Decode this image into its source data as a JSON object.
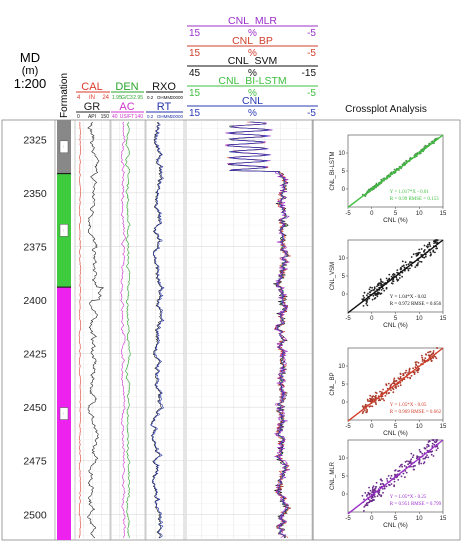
{
  "header": {
    "md_label": "MD",
    "md_unit": "(m)",
    "scale": "1:200",
    "formation_label": "Formation",
    "crossplot_title": "Crossplot Analysis"
  },
  "tracks": {
    "cal": {
      "name": "CAL",
      "min": "4",
      "unit": "IN",
      "max": "24",
      "color": "#d93a2a"
    },
    "gr": {
      "name": "GR",
      "min": "0",
      "unit": "API",
      "max": "150",
      "color": "#222222"
    },
    "den": {
      "name": "DEN",
      "min": "1.95",
      "unit": "G/C3",
      "max": "2.95",
      "color": "#2aa52a"
    },
    "ac": {
      "name": "AC",
      "min": "40",
      "unit": "US/FT",
      "max": "140",
      "color": "#cc33cc"
    },
    "rxo": {
      "name": "RXO",
      "min": "0.2",
      "unit": "OHMM",
      "max": "20000",
      "color": "#111111"
    },
    "rt": {
      "name": "RT",
      "min": "0.2",
      "unit": "OHMM",
      "max": "20000",
      "color": "#2233aa"
    }
  },
  "cnl_headers": [
    {
      "name": "CNL_MLR",
      "min": "15",
      "unit": "%",
      "max": "-5",
      "color": "#9b2fc9"
    },
    {
      "name": "CNL_BP",
      "min": "15",
      "unit": "%",
      "max": "-5",
      "color": "#d2402d"
    },
    {
      "name": "CNL_SVM",
      "min": "45",
      "unit": "%",
      "max": "-15",
      "color": "#111111"
    },
    {
      "name": "CNL_BI-LSTM",
      "min": "15",
      "unit": "%",
      "max": "-5",
      "color": "#3fbf3f"
    },
    {
      "name": "CNL",
      "min": "15",
      "unit": "%",
      "max": "-5",
      "color": "#2a3bb5"
    }
  ],
  "depth_ticks": [
    "2325",
    "2350",
    "2375",
    "2400",
    "2425",
    "2450",
    "2475",
    "2500"
  ],
  "formations": [
    {
      "label": "...",
      "color": "#888888"
    },
    {
      "label": "...",
      "color": "#3ecc3e"
    },
    {
      "label": "...",
      "color": "#ee22ee"
    }
  ],
  "chart_data": [
    {
      "type": "scatter",
      "xlabel": "CNL (%)",
      "ylabel": "CNL_BI-LSTM",
      "xlim": [
        -5,
        15
      ],
      "ylim": [
        -5,
        15
      ],
      "x_ticks": [
        "-5",
        "0",
        "5",
        "10",
        "15"
      ],
      "y_ticks": [
        "0",
        "5",
        "10"
      ],
      "fit": {
        "slope": 1.017,
        "intercept": -0.01,
        "color": "#3fbf3f"
      },
      "equation": "Y = 1.017*X - 0.01",
      "stats": "R = 0.99  RMSE = 0.153",
      "point_color": "#4a9a4a",
      "spread": 0.4
    },
    {
      "type": "scatter",
      "xlabel": "CNL (%)",
      "ylabel": "CNL_VSM",
      "xlim": [
        -5,
        15
      ],
      "ylim": [
        -5,
        15
      ],
      "x_ticks": [
        "-5",
        "0",
        "5",
        "10",
        "15"
      ],
      "y_ticks": [
        "0",
        "5",
        "10"
      ],
      "fit": {
        "slope": 1.04,
        "intercept": -0.02,
        "color": "#111111"
      },
      "equation": "Y = 1.04*X - 0.02",
      "stats": "R = 0.972  RMSE = 0.656",
      "point_color": "#222222",
      "spread": 1.6
    },
    {
      "type": "scatter",
      "xlabel": "CNL (%)",
      "ylabel": "CNL_BP",
      "xlim": [
        -5,
        15
      ],
      "ylim": [
        -5,
        15
      ],
      "x_ticks": [
        "-5",
        "0",
        "5",
        "10",
        "15"
      ],
      "y_ticks": [
        "0",
        "5",
        "10"
      ],
      "fit": {
        "slope": 1.05,
        "intercept": -0.05,
        "color": "#d2402d"
      },
      "equation": "Y = 1.05*X - 0.05",
      "stats": "R = 0.969  RMSE = 0.662",
      "point_color": "#aa3a2a",
      "spread": 1.5
    },
    {
      "type": "scatter",
      "xlabel": "CNL (%)",
      "ylabel": "CNL_MLR",
      "xlim": [
        -5,
        15
      ],
      "ylim": [
        -5,
        15
      ],
      "x_ticks": [
        "-5",
        "0",
        "5",
        "10",
        "15"
      ],
      "y_ticks": [
        "0",
        "5",
        "10"
      ],
      "fit": {
        "slope": 1.05,
        "intercept": -0.25,
        "color": "#9b2fc9"
      },
      "equation": "Y = 1.05*X - 0.25",
      "stats": "R = 0.951  RMSE = 0.799",
      "point_color": "#6a2a8a",
      "spread": 2.0
    }
  ]
}
